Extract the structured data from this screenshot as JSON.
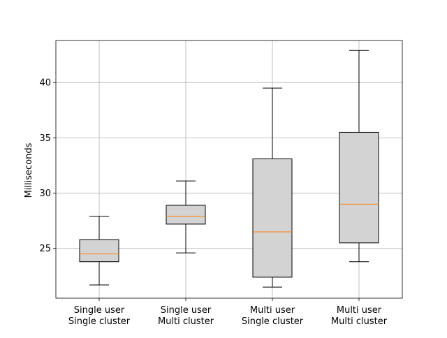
{
  "chart_data": {
    "type": "box",
    "title": "",
    "xlabel": "",
    "ylabel": "Milliseconds",
    "ylim": [
      20.5,
      43.8
    ],
    "yticks": [
      25,
      30,
      35,
      40
    ],
    "ytick_labels": [
      "25",
      "30",
      "35",
      "40"
    ],
    "grid": true,
    "categories": [
      {
        "lines": [
          "Single user",
          "Single cluster"
        ]
      },
      {
        "lines": [
          "Single user",
          "Multi cluster"
        ]
      },
      {
        "lines": [
          "Multi user",
          "Single cluster"
        ]
      },
      {
        "lines": [
          "Multi user",
          "Multi cluster"
        ]
      }
    ],
    "boxes": [
      {
        "whisker_low": 21.7,
        "q1": 23.8,
        "median": 24.5,
        "q3": 25.8,
        "whisker_high": 27.9
      },
      {
        "whisker_low": 24.6,
        "q1": 27.2,
        "median": 27.9,
        "q3": 28.9,
        "whisker_high": 31.1
      },
      {
        "whisker_low": 21.5,
        "q1": 22.4,
        "median": 26.5,
        "q3": 33.1,
        "whisker_high": 39.5
      },
      {
        "whisker_low": 23.8,
        "q1": 25.5,
        "median": 29.0,
        "q3": 35.5,
        "whisker_high": 42.9
      }
    ],
    "colors": {
      "box_fill": "#d3d3d3",
      "median": "#ff7f0e",
      "grid": "#b0b0b0",
      "line": "#000000"
    }
  }
}
